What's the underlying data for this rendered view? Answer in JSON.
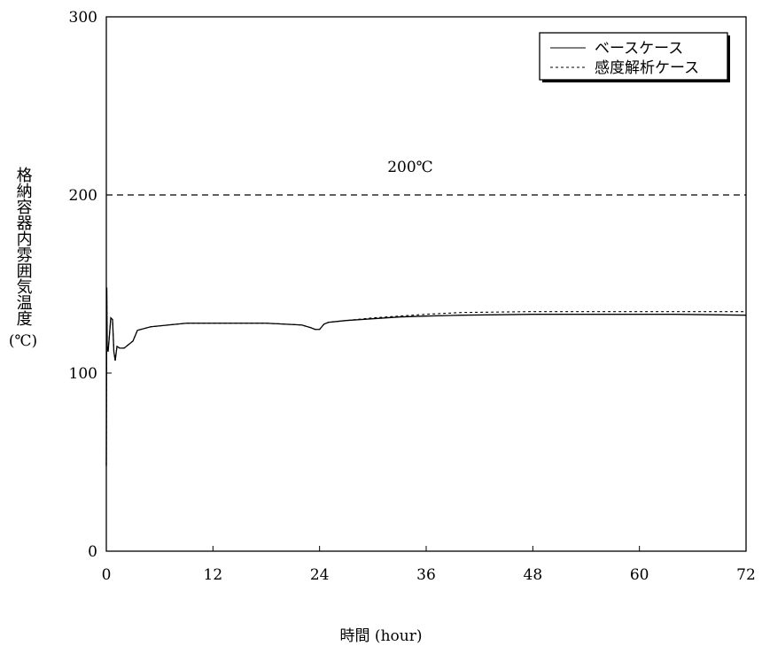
{
  "chart_data": {
    "type": "line",
    "xlabel": "時間 (hour)",
    "ylabel_text": "格納容器内雰囲気温度",
    "ylabel_unit": "(℃)",
    "xlim": [
      0,
      72
    ],
    "ylim": [
      0,
      300
    ],
    "xticks": [
      "0",
      "12",
      "24",
      "36",
      "48",
      "60",
      "72"
    ],
    "yticks": [
      "0",
      "100",
      "200",
      "300"
    ],
    "grid": false,
    "legend_position": "top-right",
    "reference_line": {
      "y": 200,
      "label": "200℃",
      "style": "dashed"
    },
    "series": [
      {
        "name": "ベースケース",
        "style": "solid",
        "x": [
          0,
          0.05,
          0.1,
          0.2,
          0.3,
          0.5,
          0.7,
          0.85,
          1.0,
          1.2,
          1.5,
          2.0,
          2.5,
          3.0,
          3.5,
          5,
          7,
          9,
          12,
          15,
          18,
          20,
          22,
          23,
          23.5,
          24,
          24.5,
          25,
          27,
          30,
          33,
          36,
          40,
          48,
          56,
          64,
          72
        ],
        "y": [
          48,
          148,
          115,
          112,
          118,
          131,
          130,
          112,
          107,
          115,
          114,
          114,
          116,
          118,
          124,
          126,
          127,
          128,
          128,
          128,
          128,
          127.5,
          127,
          125.5,
          124.5,
          124.5,
          127.5,
          128.5,
          129.5,
          130.5,
          131.5,
          132,
          132.5,
          133,
          133,
          133,
          132.5
        ]
      },
      {
        "name": "感度解析ケース",
        "style": "dotted",
        "x": [
          0,
          0.05,
          0.1,
          0.2,
          0.3,
          0.5,
          0.7,
          0.85,
          1.0,
          1.2,
          1.5,
          2.0,
          2.5,
          3.0,
          3.5,
          5,
          7,
          9,
          12,
          15,
          18,
          20,
          22,
          23,
          23.5,
          24,
          24.5,
          25,
          27,
          30,
          33,
          36,
          40,
          48,
          56,
          64,
          72
        ],
        "y": [
          48,
          148,
          115,
          112,
          118,
          131,
          130,
          112,
          107,
          115,
          114,
          114,
          116,
          118,
          124,
          126,
          127,
          128,
          128,
          128,
          128,
          127.5,
          127,
          125.5,
          124.5,
          124.5,
          127.5,
          128.5,
          129.5,
          131,
          132,
          133,
          134,
          134.5,
          134.5,
          134.5,
          134.5
        ]
      }
    ]
  }
}
